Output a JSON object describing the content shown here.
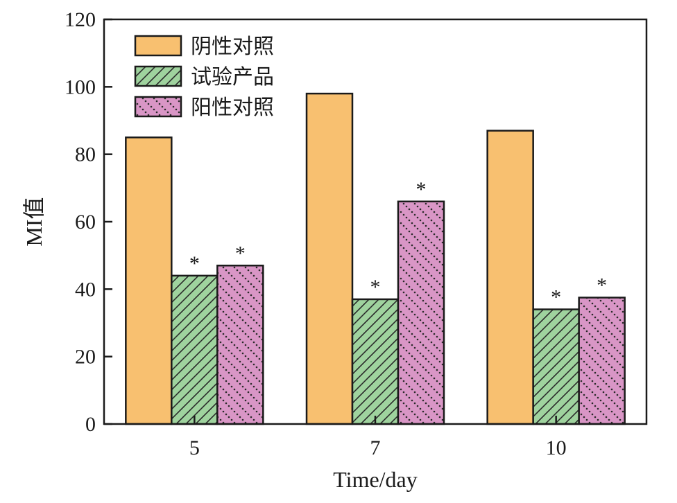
{
  "chart_data": {
    "type": "bar",
    "categories": [
      "5",
      "7",
      "10"
    ],
    "series": [
      {
        "name": "阴性对照",
        "values": [
          85,
          98,
          87
        ],
        "color": "#f8c070",
        "pattern": "none",
        "marks": [
          "",
          "",
          ""
        ]
      },
      {
        "name": "试验产品",
        "values": [
          44,
          37,
          34
        ],
        "color": "#9fd39e",
        "pattern": "diagonal-lines",
        "marks": [
          "*",
          "*",
          "*"
        ]
      },
      {
        "name": "阳性对照",
        "values": [
          47,
          66,
          37.5
        ],
        "color": "#d996c6",
        "pattern": "dotted-diagonal",
        "marks": [
          "*",
          "*",
          "*"
        ]
      }
    ],
    "xlabel": "Time/day",
    "ylabel": "MI值",
    "ylim": [
      0,
      120
    ],
    "yticks": [
      0,
      20,
      40,
      60,
      80,
      100,
      120
    ],
    "legend_position": "top-left",
    "grid": false
  }
}
